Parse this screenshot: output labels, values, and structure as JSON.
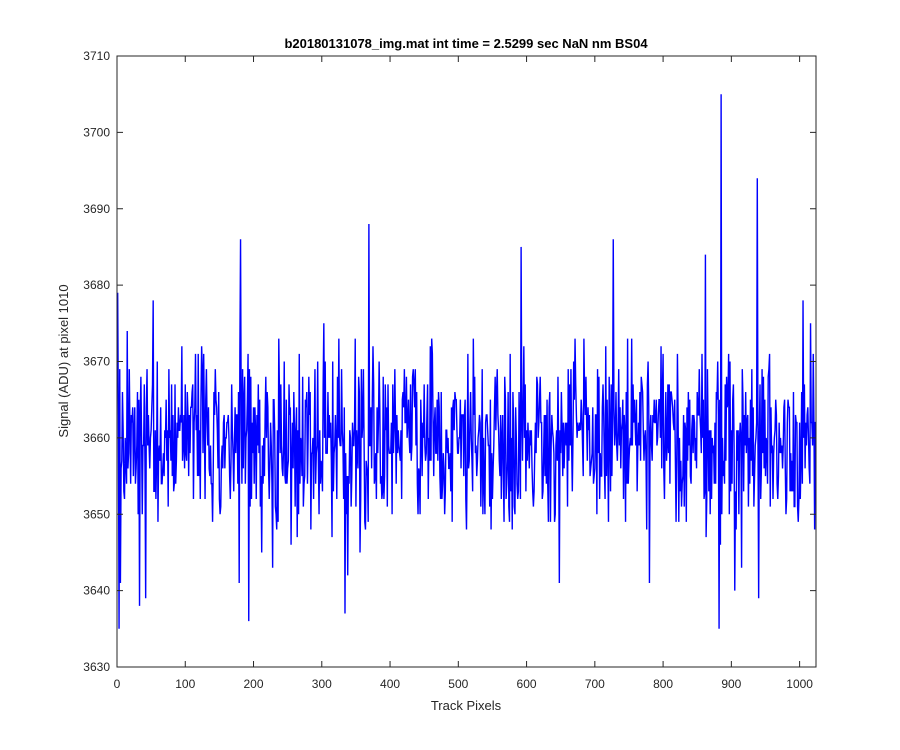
{
  "chart_data": {
    "type": "line",
    "title": "b20180131078_img.mat int time = 2.5299 sec  NaN nm BS04",
    "xlabel": "Track Pixels",
    "ylabel": "Signal (ADU) at pixel 1010",
    "xlim": [
      0,
      1024
    ],
    "ylim": [
      3630,
      3710
    ],
    "xticks": [
      0,
      100,
      200,
      300,
      400,
      500,
      600,
      700,
      800,
      900,
      1000
    ],
    "yticks": [
      3630,
      3640,
      3650,
      3660,
      3670,
      3680,
      3690,
      3700,
      3710
    ],
    "grid": false,
    "series": [
      {
        "color": "#0000ff",
        "x_start": 1,
        "x_step": 1,
        "n_points": 1024,
        "mean": 3660,
        "noise_range": [
          3643,
          3677
        ],
        "notable_points": [
          {
            "x": 1,
            "y": 3679
          },
          {
            "x": 3,
            "y": 3635
          },
          {
            "x": 5,
            "y": 3641
          },
          {
            "x": 33,
            "y": 3638
          },
          {
            "x": 42,
            "y": 3639
          },
          {
            "x": 53,
            "y": 3678
          },
          {
            "x": 181,
            "y": 3686
          },
          {
            "x": 179,
            "y": 3641
          },
          {
            "x": 193,
            "y": 3636
          },
          {
            "x": 228,
            "y": 3643
          },
          {
            "x": 369,
            "y": 3688
          },
          {
            "x": 334,
            "y": 3637
          },
          {
            "x": 338,
            "y": 3642
          },
          {
            "x": 592,
            "y": 3685
          },
          {
            "x": 648,
            "y": 3641
          },
          {
            "x": 727,
            "y": 3686
          },
          {
            "x": 780,
            "y": 3641
          },
          {
            "x": 862,
            "y": 3684
          },
          {
            "x": 882,
            "y": 3635
          },
          {
            "x": 885,
            "y": 3705
          },
          {
            "x": 905,
            "y": 3640
          },
          {
            "x": 915,
            "y": 3643
          },
          {
            "x": 938,
            "y": 3694
          },
          {
            "x": 940,
            "y": 3639
          },
          {
            "x": 1005,
            "y": 3678
          },
          {
            "x": 1016,
            "y": 3675
          },
          {
            "x": 1022,
            "y": 3648
          }
        ]
      }
    ]
  }
}
